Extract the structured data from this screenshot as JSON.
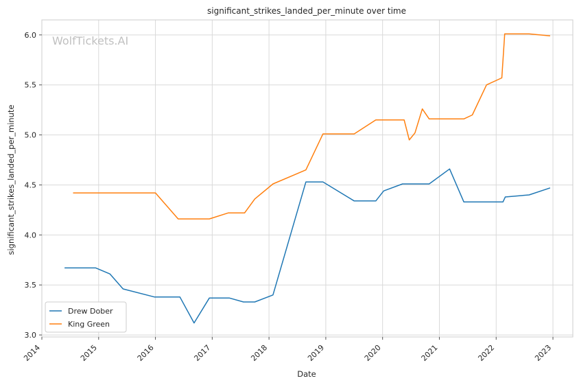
{
  "chart_data": {
    "type": "line",
    "title": "significant_strikes_landed_per_minute over time",
    "xlabel": "Date",
    "ylabel": "significant_strikes_landed_per_minute",
    "watermark": "WolfTickets.AI",
    "xlim": [
      2014.0,
      2023.35
    ],
    "ylim": [
      2.98,
      6.15
    ],
    "x_ticks": [
      2014,
      2015,
      2016,
      2017,
      2018,
      2019,
      2020,
      2021,
      2022,
      2023
    ],
    "x_tick_labels": [
      "2014",
      "2015",
      "2016",
      "2017",
      "2018",
      "2019",
      "2020",
      "2021",
      "2022",
      "2023"
    ],
    "y_ticks": [
      3.0,
      3.5,
      4.0,
      4.5,
      5.0,
      5.5,
      6.0
    ],
    "y_tick_labels": [
      "3.0",
      "3.5",
      "4.0",
      "4.5",
      "5.0",
      "5.5",
      "6.0"
    ],
    "grid": true,
    "legend_position": "lower-left",
    "series": [
      {
        "name": "Drew Dober",
        "color": "#1f77b4",
        "x": [
          2014.4,
          2014.95,
          2015.2,
          2015.43,
          2015.98,
          2016.43,
          2016.68,
          2016.95,
          2017.3,
          2017.55,
          2017.75,
          2018.07,
          2018.65,
          2018.95,
          2019.5,
          2019.88,
          2020.02,
          2020.35,
          2020.82,
          2021.18,
          2021.43,
          2021.98,
          2022.12,
          2022.16,
          2022.58,
          2022.95
        ],
        "y": [
          3.67,
          3.67,
          3.61,
          3.46,
          3.38,
          3.38,
          3.12,
          3.37,
          3.37,
          3.33,
          3.33,
          3.4,
          4.53,
          4.53,
          4.34,
          4.34,
          4.44,
          4.51,
          4.51,
          4.66,
          4.33,
          4.33,
          4.33,
          4.38,
          4.4,
          4.47
        ]
      },
      {
        "name": "King Green",
        "color": "#ff7f0e",
        "x": [
          2014.55,
          2015.0,
          2015.5,
          2016.0,
          2016.4,
          2016.95,
          2017.28,
          2017.57,
          2017.75,
          2018.07,
          2018.65,
          2018.95,
          2019.5,
          2019.88,
          2020.07,
          2020.38,
          2020.47,
          2020.57,
          2020.7,
          2020.82,
          2021.1,
          2021.43,
          2021.58,
          2021.83,
          2022.1,
          2022.15,
          2022.58,
          2022.95
        ],
        "y": [
          4.42,
          4.42,
          4.42,
          4.42,
          4.16,
          4.16,
          4.22,
          4.22,
          4.36,
          4.51,
          4.65,
          5.01,
          5.01,
          5.15,
          5.15,
          5.15,
          4.95,
          5.02,
          5.26,
          5.16,
          5.16,
          5.16,
          5.2,
          5.5,
          5.57,
          6.01,
          6.01,
          5.99
        ]
      }
    ]
  }
}
